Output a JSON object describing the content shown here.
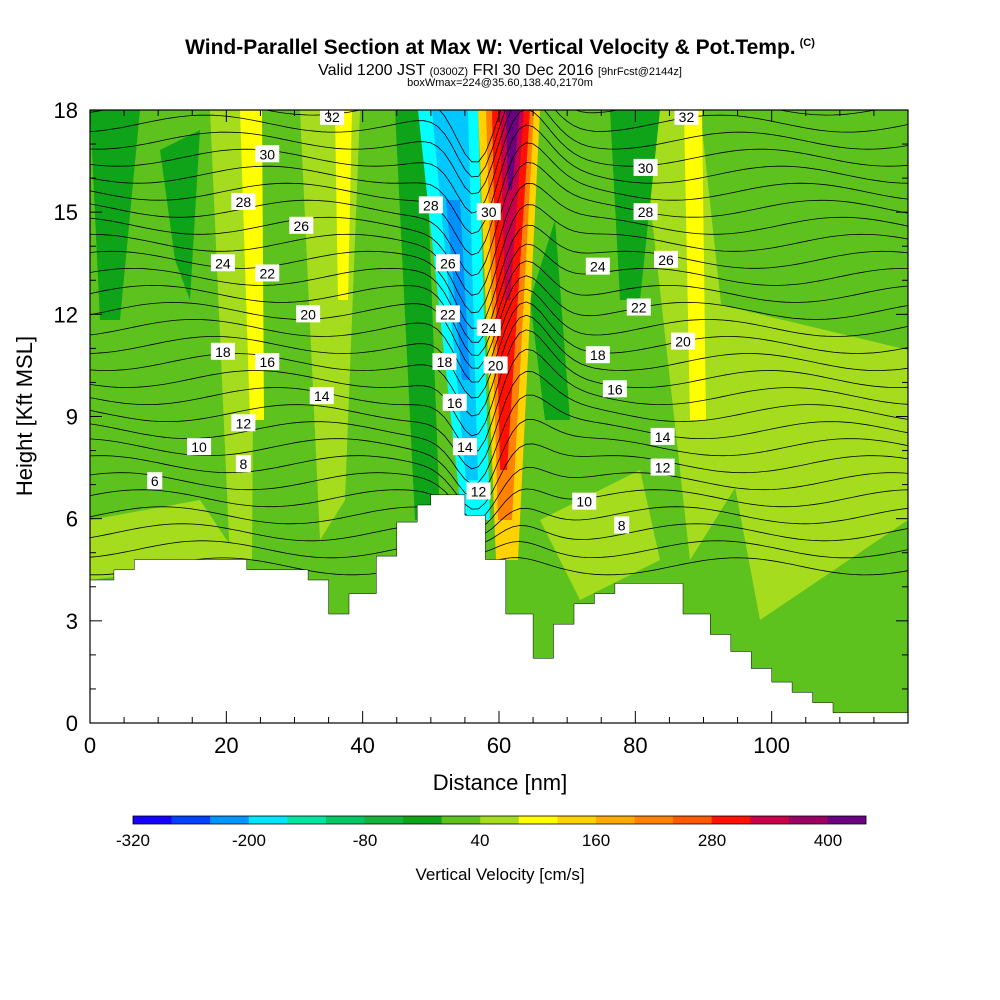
{
  "title": "Wind-Parallel Section at Max W: Vertical Velocity & Pot.Temp.",
  "copyright": "(C)",
  "subtitle_main": "Valid 1200 JST",
  "subtitle_utc": "(0300Z)",
  "subtitle_date": "FRI 30 Dec 2016",
  "subtitle_fcst": "[9hrFcst@2144z]",
  "box_label": "boxWmax=224@35.60,138.40,2170m",
  "colors": {
    "terrain": "#ffffff",
    "green": "#5ec21e",
    "light_green": "#a6dc1e",
    "dark_green": "#0ea318",
    "yellow": "#ffff00",
    "cyan": "#00ffff",
    "blue": "#0090ff",
    "red": "#ff1000",
    "purple": "#6a0080"
  },
  "chart_data": {
    "type": "heatmap",
    "xlabel": "Distance [nm]",
    "ylabel": "Height [Kft MSL]",
    "xlim": [
      0,
      120
    ],
    "ylim": [
      0,
      18
    ],
    "x_ticks": [
      0,
      20,
      40,
      60,
      80,
      100
    ],
    "y_ticks": [
      0,
      3,
      6,
      9,
      12,
      15,
      18
    ],
    "colorbar": {
      "label": "Vertical Velocity [cm/s]",
      "tick_labels": [
        "-320",
        "-200",
        "-80",
        "40",
        "160",
        "280",
        "400"
      ],
      "colors": [
        "#1400ff",
        "#0040ff",
        "#0096ff",
        "#00e6ff",
        "#00e6a0",
        "#00c864",
        "#14b43c",
        "#0ea318",
        "#5ec21e",
        "#a6dc1e",
        "#ffff00",
        "#ffd200",
        "#ffaa00",
        "#ff8200",
        "#ff5a00",
        "#ff1000",
        "#c8004b",
        "#9b0064",
        "#6a0080"
      ]
    },
    "terrain_profile": [
      [
        0,
        4.2
      ],
      [
        3.5,
        4.2
      ],
      [
        3.5,
        4.5
      ],
      [
        6.5,
        4.5
      ],
      [
        6.5,
        4.8
      ],
      [
        23,
        4.8
      ],
      [
        23,
        4.5
      ],
      [
        32,
        4.5
      ],
      [
        32,
        4.2
      ],
      [
        35,
        4.2
      ],
      [
        35,
        3.2
      ],
      [
        38,
        3.2
      ],
      [
        38,
        3.8
      ],
      [
        42,
        3.8
      ],
      [
        42,
        4.9
      ],
      [
        45,
        4.9
      ],
      [
        45,
        5.9
      ],
      [
        48,
        5.9
      ],
      [
        48,
        6.4
      ],
      [
        50,
        6.4
      ],
      [
        50,
        6.7
      ],
      [
        55,
        6.7
      ],
      [
        55,
        6.1
      ],
      [
        58,
        6.1
      ],
      [
        58,
        4.8
      ],
      [
        61,
        4.8
      ],
      [
        61,
        3.2
      ],
      [
        65,
        3.2
      ],
      [
        65,
        1.9
      ],
      [
        68,
        1.9
      ],
      [
        68,
        2.9
      ],
      [
        71,
        2.9
      ],
      [
        71,
        3.5
      ],
      [
        74,
        3.5
      ],
      [
        74,
        3.8
      ],
      [
        77,
        3.8
      ],
      [
        77,
        4.1
      ],
      [
        87,
        4.1
      ],
      [
        87,
        3.2
      ],
      [
        91,
        3.2
      ],
      [
        91,
        2.6
      ],
      [
        94,
        2.6
      ],
      [
        94,
        2.1
      ],
      [
        97,
        2.1
      ],
      [
        97,
        1.6
      ],
      [
        100,
        1.6
      ],
      [
        100,
        1.2
      ],
      [
        103,
        1.2
      ],
      [
        103,
        0.9
      ],
      [
        106,
        0.9
      ],
      [
        106,
        0.6
      ],
      [
        109,
        0.6
      ],
      [
        109,
        0.3
      ],
      [
        120,
        0.3
      ]
    ],
    "updraft_core": {
      "x_range": [
        57,
        66
      ],
      "max_label": "boxWmax=224"
    },
    "downdraft_core": {
      "x_range": [
        48,
        57
      ]
    },
    "theta_contour_labels": [
      {
        "label": "6",
        "x": 9.5,
        "y": 7.1
      },
      {
        "label": "10",
        "x": 16,
        "y": 8.1
      },
      {
        "label": "8",
        "x": 22.5,
        "y": 7.6
      },
      {
        "label": "12",
        "x": 22.5,
        "y": 8.8
      },
      {
        "label": "14",
        "x": 34,
        "y": 9.6
      },
      {
        "label": "16",
        "x": 26,
        "y": 10.6
      },
      {
        "label": "18",
        "x": 19.5,
        "y": 10.9
      },
      {
        "label": "20",
        "x": 32,
        "y": 12
      },
      {
        "label": "22",
        "x": 26,
        "y": 13.2
      },
      {
        "label": "24",
        "x": 19.5,
        "y": 13.5
      },
      {
        "label": "26",
        "x": 31,
        "y": 14.6
      },
      {
        "label": "28",
        "x": 22.5,
        "y": 15.3
      },
      {
        "label": "30",
        "x": 26,
        "y": 16.7
      },
      {
        "label": "32",
        "x": 35.5,
        "y": 17.8
      },
      {
        "label": "28",
        "x": 50,
        "y": 15.2
      },
      {
        "label": "26",
        "x": 52.5,
        "y": 13.5
      },
      {
        "label": "22",
        "x": 52.5,
        "y": 12
      },
      {
        "label": "18",
        "x": 52,
        "y": 10.6
      },
      {
        "label": "16",
        "x": 53.5,
        "y": 9.4
      },
      {
        "label": "14",
        "x": 55,
        "y": 8.1
      },
      {
        "label": "12",
        "x": 57,
        "y": 6.8
      },
      {
        "label": "30",
        "x": 58.5,
        "y": 15
      },
      {
        "label": "24",
        "x": 58.5,
        "y": 11.6
      },
      {
        "label": "20",
        "x": 59.5,
        "y": 10.5
      },
      {
        "label": "32",
        "x": 87.5,
        "y": 17.8
      },
      {
        "label": "30",
        "x": 81.5,
        "y": 16.3
      },
      {
        "label": "28",
        "x": 81.5,
        "y": 15
      },
      {
        "label": "26",
        "x": 84.5,
        "y": 13.6
      },
      {
        "label": "24",
        "x": 74.5,
        "y": 13.4
      },
      {
        "label": "22",
        "x": 80.5,
        "y": 12.2
      },
      {
        "label": "20",
        "x": 87,
        "y": 11.2
      },
      {
        "label": "18",
        "x": 74.5,
        "y": 10.8
      },
      {
        "label": "16",
        "x": 77,
        "y": 9.8
      },
      {
        "label": "14",
        "x": 84,
        "y": 8.4
      },
      {
        "label": "12",
        "x": 84,
        "y": 7.5
      },
      {
        "label": "10",
        "x": 72.5,
        "y": 6.5
      },
      {
        "label": "8",
        "x": 78,
        "y": 5.8
      }
    ]
  }
}
